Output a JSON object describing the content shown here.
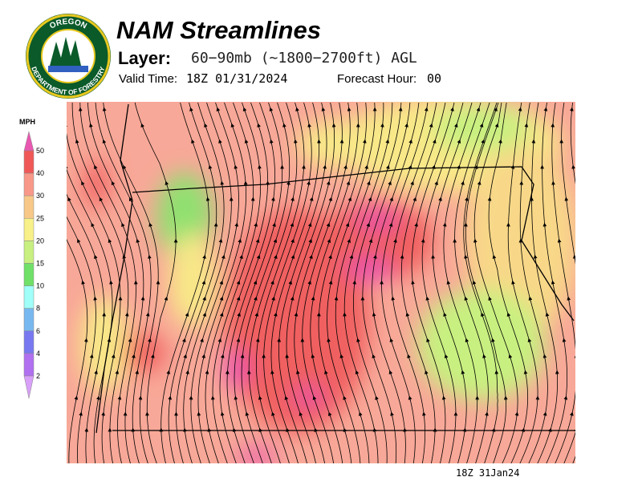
{
  "logo": {
    "top": "OREGON",
    "bottom": "DEPARTMENT OF FORESTRY"
  },
  "header": {
    "title": "NAM Streamlines",
    "layer_label": "Layer:",
    "layer": "60−90mb (~1800−2700ft) AGL",
    "valid_label": "Valid Time:",
    "valid": "18Z 01/31/2024",
    "hour_label": "Forecast Hour:",
    "hour": "00"
  },
  "legend": {
    "unit": "MPH",
    "ticks": [
      50,
      40,
      30,
      25,
      20,
      15,
      10,
      8,
      6,
      4,
      2
    ],
    "colors": [
      "#e858b0",
      "#f05858",
      "#f89888",
      "#f8c888",
      "#f8f088",
      "#c8f080",
      "#70e068",
      "#a0fff8",
      "#78b8f0",
      "#7878f0",
      "#b070f0",
      "#d8a0f8"
    ]
  },
  "footer": {
    "stamp": "18Z 31Jan24"
  }
}
